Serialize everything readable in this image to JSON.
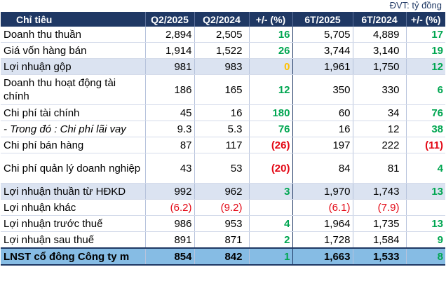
{
  "unit_label": "ĐVT: tỷ đồng",
  "headers": [
    "Chỉ tiêu",
    "Q2/2025",
    "Q2/2024",
    "+/- (%)",
    "6T/2025",
    "6T/2024",
    "+/- (%)"
  ],
  "rows": [
    {
      "label": "Doanh thu thuần",
      "v": [
        "2,894",
        "2,505",
        "16",
        "5,705",
        "4,889",
        "17"
      ]
    },
    {
      "label": "Giá vốn hàng bán",
      "v": [
        "1,914",
        "1,522",
        "26",
        "3,744",
        "3,140",
        "19"
      ]
    },
    {
      "label": "Lợi nhuận gộp",
      "v": [
        "981",
        "983",
        "0",
        "1,961",
        "1,750",
        "12"
      ]
    },
    {
      "label": "Doanh thu hoạt động tài chính",
      "v": [
        "186",
        "165",
        "12",
        "350",
        "330",
        "6"
      ]
    },
    {
      "label": "Chi phí tài chính",
      "v": [
        "45",
        "16",
        "180",
        "60",
        "34",
        "76"
      ]
    },
    {
      "label": "- Trong đó : Chi phí lãi vay",
      "v": [
        "9.3",
        "5.3",
        "76",
        "16",
        "12",
        "38"
      ]
    },
    {
      "label": "Chi phí bán hàng",
      "v": [
        "87",
        "117",
        "(26)",
        "197",
        "222",
        "(11)"
      ]
    },
    {
      "label": "Chi phí quản lý doanh nghiệp",
      "v": [
        "43",
        "53",
        "(20)",
        "84",
        "81",
        "4"
      ]
    },
    {
      "label": "Lợi nhuận thuần từ HĐKD",
      "v": [
        "992",
        "962",
        "3",
        "1,970",
        "1,743",
        "13"
      ]
    },
    {
      "label": "Lợi nhuận khác",
      "v": [
        "(6.2)",
        "(9.2)",
        "",
        "(6.1)",
        "(7.9)",
        ""
      ]
    },
    {
      "label": "Lợi nhuận trước thuế",
      "v": [
        "986",
        "953",
        "4",
        "1,964",
        "1,735",
        "13"
      ]
    },
    {
      "label": "Lợi nhuận sau thuế",
      "v": [
        "891",
        "871",
        "2",
        "1,728",
        "1,584",
        "9"
      ]
    },
    {
      "label": "LNST cổ đông Công ty m",
      "v": [
        "854",
        "842",
        "1",
        "1,663",
        "1,533",
        "8"
      ]
    }
  ]
}
